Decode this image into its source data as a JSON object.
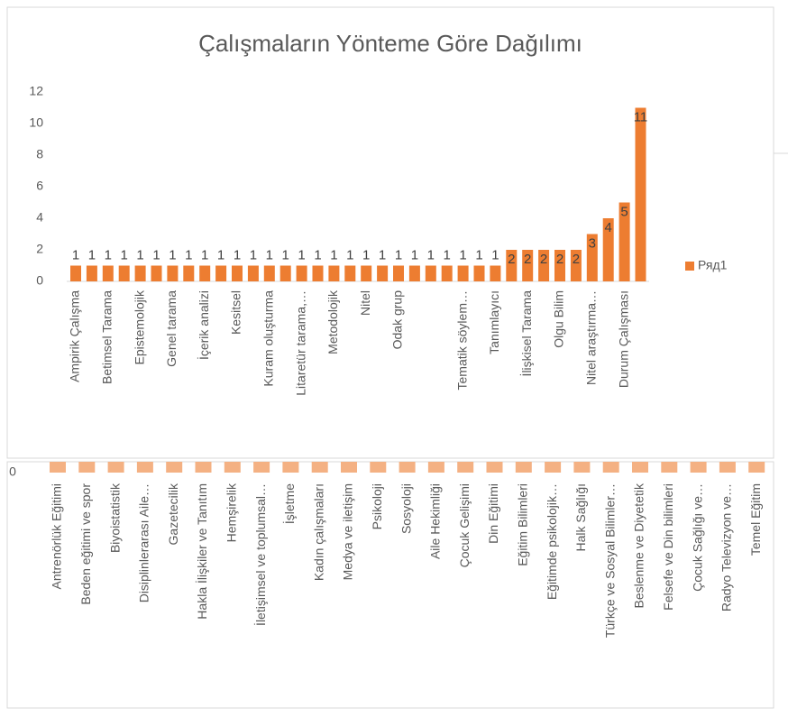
{
  "chart_data": [
    {
      "type": "bar",
      "title": "Çalışmaların Yönteme Göre Dağılımı",
      "categories": [
        "Ampirik Çalışma",
        null,
        "Betimsel Tarama",
        null,
        "Epistemolojik",
        null,
        "Genel tarama",
        null,
        "İçerik analizi",
        null,
        "Kesitsel",
        null,
        "Kuram oluşturma",
        null,
        "Litaretür tarama,…",
        null,
        "Metodolojik",
        null,
        "Nitel",
        null,
        "Odak grup",
        null,
        null,
        null,
        "Tematik söylem…",
        null,
        "Tanımlayıcı",
        null,
        "İlişkisel Tarama",
        null,
        "Olgu Bilim",
        null,
        "Nitel araştırma…",
        null,
        "Durum Çalışması",
        null
      ],
      "series": [
        {
          "name": "Ряд1",
          "color": "#ed7d31",
          "values": [
            1,
            1,
            1,
            1,
            1,
            1,
            1,
            1,
            1,
            1,
            1,
            1,
            1,
            1,
            1,
            1,
            1,
            1,
            1,
            1,
            1,
            1,
            1,
            1,
            1,
            1,
            1,
            2,
            2,
            2,
            2,
            2,
            3,
            4,
            5,
            11
          ]
        }
      ],
      "ylim": [
        0,
        12
      ],
      "yticks": [
        0,
        2,
        4,
        6,
        8,
        10,
        12
      ],
      "legend": "right"
    },
    {
      "type": "bar",
      "categories": [
        "Antrenörlük Eğitimi",
        "Beden eğitimi ve spor",
        "Biyoistatistik",
        "Disiplinlerarası Aile…",
        "Gazetecilik",
        "Hakla İlişkiler ve Tanıtım",
        "Hemşirelik",
        "İletişimsel ve toplumsal…",
        "İşletme",
        "Kadın çalışmaları",
        "Medya ve iletişim",
        "Psikoloji",
        "Sosyoloji",
        "Aile Hekimliği",
        "Çocuk Gelişimi",
        "Din Eğitimi",
        "Eğitim Bilimleri",
        "Eğitimde psikolojik…",
        "Halk Sağlığı",
        "Türkçe ve Sosyal Bilimler…",
        "Beslenme ve Diyetetik",
        "Felsefe ve Din bilimleri",
        "Çocuk Sağlığı ve…",
        "Radyo Televizyon ve…",
        "Temel Eğitim"
      ],
      "color": "#f4b183",
      "yticks": [
        0
      ]
    }
  ]
}
